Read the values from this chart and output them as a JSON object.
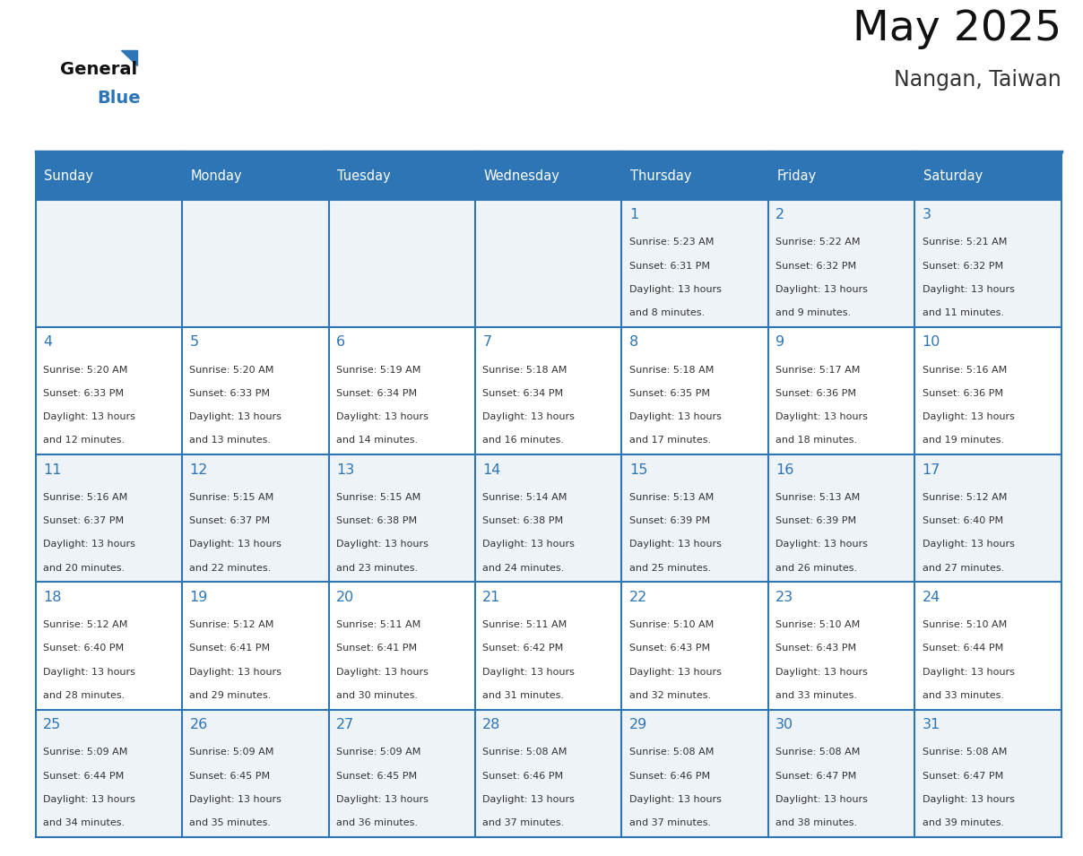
{
  "title": "May 2025",
  "subtitle": "Nangan, Taiwan",
  "header_color": "#2E75B6",
  "header_text_color": "#FFFFFF",
  "day_names": [
    "Sunday",
    "Monday",
    "Tuesday",
    "Wednesday",
    "Thursday",
    "Friday",
    "Saturday"
  ],
  "background_color": "#FFFFFF",
  "cell_bg_even": "#EEF3F8",
  "cell_bg_odd": "#FFFFFF",
  "cell_border_color": "#2E75B6",
  "day_number_color": "#2E75B6",
  "text_color": "#333333",
  "days": [
    {
      "day": 1,
      "col": 4,
      "row": 0,
      "sunrise": "5:23 AM",
      "sunset": "6:31 PM",
      "daylight_suffix": "8 minutes."
    },
    {
      "day": 2,
      "col": 5,
      "row": 0,
      "sunrise": "5:22 AM",
      "sunset": "6:32 PM",
      "daylight_suffix": "9 minutes."
    },
    {
      "day": 3,
      "col": 6,
      "row": 0,
      "sunrise": "5:21 AM",
      "sunset": "6:32 PM",
      "daylight_suffix": "11 minutes."
    },
    {
      "day": 4,
      "col": 0,
      "row": 1,
      "sunrise": "5:20 AM",
      "sunset": "6:33 PM",
      "daylight_suffix": "12 minutes."
    },
    {
      "day": 5,
      "col": 1,
      "row": 1,
      "sunrise": "5:20 AM",
      "sunset": "6:33 PM",
      "daylight_suffix": "13 minutes."
    },
    {
      "day": 6,
      "col": 2,
      "row": 1,
      "sunrise": "5:19 AM",
      "sunset": "6:34 PM",
      "daylight_suffix": "14 minutes."
    },
    {
      "day": 7,
      "col": 3,
      "row": 1,
      "sunrise": "5:18 AM",
      "sunset": "6:34 PM",
      "daylight_suffix": "16 minutes."
    },
    {
      "day": 8,
      "col": 4,
      "row": 1,
      "sunrise": "5:18 AM",
      "sunset": "6:35 PM",
      "daylight_suffix": "17 minutes."
    },
    {
      "day": 9,
      "col": 5,
      "row": 1,
      "sunrise": "5:17 AM",
      "sunset": "6:36 PM",
      "daylight_suffix": "18 minutes."
    },
    {
      "day": 10,
      "col": 6,
      "row": 1,
      "sunrise": "5:16 AM",
      "sunset": "6:36 PM",
      "daylight_suffix": "19 minutes."
    },
    {
      "day": 11,
      "col": 0,
      "row": 2,
      "sunrise": "5:16 AM",
      "sunset": "6:37 PM",
      "daylight_suffix": "20 minutes."
    },
    {
      "day": 12,
      "col": 1,
      "row": 2,
      "sunrise": "5:15 AM",
      "sunset": "6:37 PM",
      "daylight_suffix": "22 minutes."
    },
    {
      "day": 13,
      "col": 2,
      "row": 2,
      "sunrise": "5:15 AM",
      "sunset": "6:38 PM",
      "daylight_suffix": "23 minutes."
    },
    {
      "day": 14,
      "col": 3,
      "row": 2,
      "sunrise": "5:14 AM",
      "sunset": "6:38 PM",
      "daylight_suffix": "24 minutes."
    },
    {
      "day": 15,
      "col": 4,
      "row": 2,
      "sunrise": "5:13 AM",
      "sunset": "6:39 PM",
      "daylight_suffix": "25 minutes."
    },
    {
      "day": 16,
      "col": 5,
      "row": 2,
      "sunrise": "5:13 AM",
      "sunset": "6:39 PM",
      "daylight_suffix": "26 minutes."
    },
    {
      "day": 17,
      "col": 6,
      "row": 2,
      "sunrise": "5:12 AM",
      "sunset": "6:40 PM",
      "daylight_suffix": "27 minutes."
    },
    {
      "day": 18,
      "col": 0,
      "row": 3,
      "sunrise": "5:12 AM",
      "sunset": "6:40 PM",
      "daylight_suffix": "28 minutes."
    },
    {
      "day": 19,
      "col": 1,
      "row": 3,
      "sunrise": "5:12 AM",
      "sunset": "6:41 PM",
      "daylight_suffix": "29 minutes."
    },
    {
      "day": 20,
      "col": 2,
      "row": 3,
      "sunrise": "5:11 AM",
      "sunset": "6:41 PM",
      "daylight_suffix": "30 minutes."
    },
    {
      "day": 21,
      "col": 3,
      "row": 3,
      "sunrise": "5:11 AM",
      "sunset": "6:42 PM",
      "daylight_suffix": "31 minutes."
    },
    {
      "day": 22,
      "col": 4,
      "row": 3,
      "sunrise": "5:10 AM",
      "sunset": "6:43 PM",
      "daylight_suffix": "32 minutes."
    },
    {
      "day": 23,
      "col": 5,
      "row": 3,
      "sunrise": "5:10 AM",
      "sunset": "6:43 PM",
      "daylight_suffix": "33 minutes."
    },
    {
      "day": 24,
      "col": 6,
      "row": 3,
      "sunrise": "5:10 AM",
      "sunset": "6:44 PM",
      "daylight_suffix": "33 minutes."
    },
    {
      "day": 25,
      "col": 0,
      "row": 4,
      "sunrise": "5:09 AM",
      "sunset": "6:44 PM",
      "daylight_suffix": "34 minutes."
    },
    {
      "day": 26,
      "col": 1,
      "row": 4,
      "sunrise": "5:09 AM",
      "sunset": "6:45 PM",
      "daylight_suffix": "35 minutes."
    },
    {
      "day": 27,
      "col": 2,
      "row": 4,
      "sunrise": "5:09 AM",
      "sunset": "6:45 PM",
      "daylight_suffix": "36 minutes."
    },
    {
      "day": 28,
      "col": 3,
      "row": 4,
      "sunrise": "5:08 AM",
      "sunset": "6:46 PM",
      "daylight_suffix": "37 minutes."
    },
    {
      "day": 29,
      "col": 4,
      "row": 4,
      "sunrise": "5:08 AM",
      "sunset": "6:46 PM",
      "daylight_suffix": "37 minutes."
    },
    {
      "day": 30,
      "col": 5,
      "row": 4,
      "sunrise": "5:08 AM",
      "sunset": "6:47 PM",
      "daylight_suffix": "38 minutes."
    },
    {
      "day": 31,
      "col": 6,
      "row": 4,
      "sunrise": "5:08 AM",
      "sunset": "6:47 PM",
      "daylight_suffix": "39 minutes."
    }
  ]
}
